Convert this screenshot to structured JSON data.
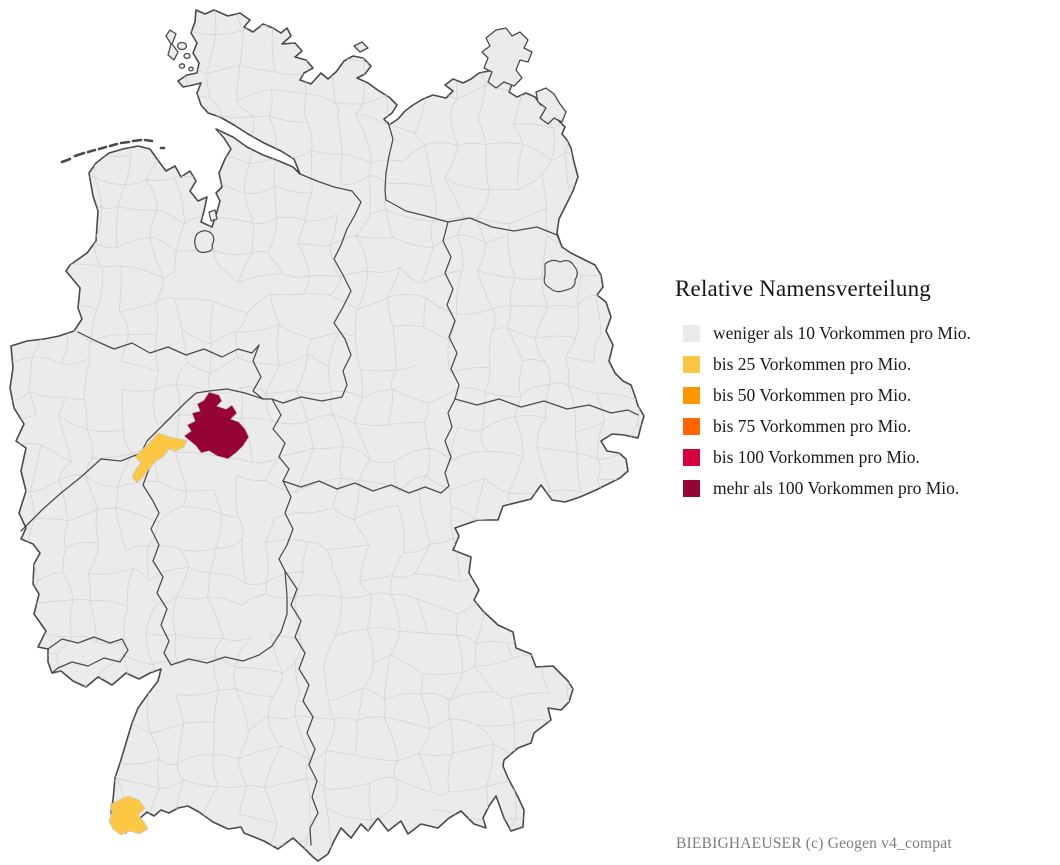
{
  "legend": {
    "title": "Relative Namensverteilung",
    "items": [
      {
        "label": "weniger als 10 Vorkommen pro Mio.",
        "color": "#ebebeb"
      },
      {
        "label": "bis 25 Vorkommen pro Mio.",
        "color": "#fcc843"
      },
      {
        "label": "bis 50 Vorkommen pro Mio.",
        "color": "#ff9800"
      },
      {
        "label": "bis 75 Vorkommen pro Mio.",
        "color": "#ff6600"
      },
      {
        "label": "bis 100 Vorkommen pro Mio.",
        "color": "#d5013f"
      },
      {
        "label": "mehr als 100 Vorkommen pro Mio.",
        "color": "#960336"
      }
    ]
  },
  "attribution": "BIEBIGHAEUSER (c) Geogen v4_compat",
  "map": {
    "background": "#ffffff",
    "region_fill": "#ebebeb",
    "outer_border_color": "#4a4a4a",
    "district_border_color": "#d4d4d4",
    "highlighted_districts": [
      {
        "position": "central-germany",
        "category": "mehr als 100 Vorkommen pro Mio.",
        "color": "#960336"
      },
      {
        "position": "central-west-germany",
        "category": "bis 25 Vorkommen pro Mio.",
        "color": "#fcc843"
      },
      {
        "position": "southwest-germany",
        "category": "bis 25 Vorkommen pro Mio.",
        "color": "#fcc843"
      }
    ]
  }
}
